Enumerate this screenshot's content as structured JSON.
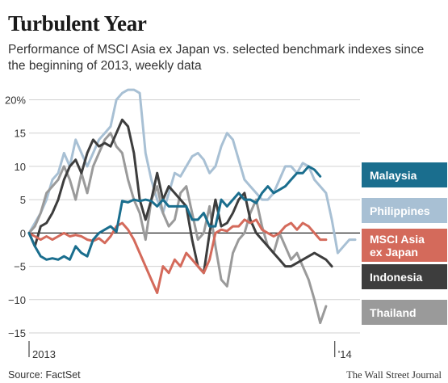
{
  "header": {
    "title": "Turbulent Year",
    "subtitle": "Performance of MSCI Asia ex Japan vs. selected benchmark indexes since the beginning of 2013, weekly data"
  },
  "footer": {
    "source": "Source: FactSet",
    "publisher": "The Wall Street Journal"
  },
  "legend": [
    {
      "label": "Malaysia",
      "color": "#1a6e8e"
    },
    {
      "label": "Philippines",
      "color": "#a8c0d4"
    },
    {
      "label": "MSCI Asia ex Japan",
      "color": "#d46a5b"
    },
    {
      "label": "Indonesia",
      "color": "#3d3d3d"
    },
    {
      "label": "Thailand",
      "color": "#9a9a9a"
    }
  ],
  "chart_data": {
    "type": "line",
    "ylim": [
      -15,
      22
    ],
    "yticks": [
      -15,
      -10,
      -5,
      0,
      5,
      10,
      15,
      20
    ],
    "ytick_labels": [
      "−15",
      "−10",
      "−5",
      "0",
      "5",
      "10",
      "15",
      "20%"
    ],
    "xtick_labels": [
      "2013",
      "'14"
    ],
    "grid": "horizontal",
    "x_start": "2013-01-04",
    "x_step_weeks": 1,
    "series": [
      {
        "name": "Philippines",
        "color": "#a8c0d4",
        "values": [
          0,
          1.5,
          3,
          5,
          8,
          9,
          12,
          10,
          14,
          12,
          10,
          12,
          14,
          15,
          16,
          20,
          21,
          21.5,
          21.5,
          21,
          12,
          8,
          5,
          3,
          6,
          9,
          8.5,
          10,
          11.5,
          12,
          11,
          9,
          10,
          13,
          15,
          14,
          11,
          8,
          7,
          6,
          5,
          5,
          6,
          8,
          10,
          10,
          9,
          10.5,
          10,
          8,
          7,
          6,
          2,
          -3,
          -2,
          -1,
          -1
        ]
      },
      {
        "name": "Thailand",
        "color": "#9a9a9a",
        "values": [
          0,
          1,
          3,
          6,
          7,
          8,
          10,
          8,
          5,
          9,
          6,
          10,
          12,
          14,
          15,
          13,
          12,
          8,
          5,
          3,
          -1,
          5,
          7,
          3,
          1,
          2,
          6,
          7,
          3,
          -1,
          0,
          4,
          -2,
          -7,
          -8,
          -3,
          -1,
          0,
          3,
          5,
          1,
          -2,
          -3,
          0,
          -2,
          -4,
          -3,
          -5,
          -7,
          -10,
          -13.5,
          -11
        ]
      },
      {
        "name": "Indonesia",
        "color": "#3d3d3d",
        "values": [
          0,
          -2,
          1,
          1.5,
          3,
          5,
          8,
          10,
          11,
          9,
          12,
          14,
          13,
          13.5,
          13,
          15,
          17,
          16,
          12,
          5,
          2,
          5,
          9,
          5,
          7,
          6,
          5,
          4,
          -1,
          -5,
          -6,
          0,
          5,
          1,
          1.5,
          3,
          5,
          6,
          2,
          0,
          -1,
          -2,
          -3,
          -4,
          -5,
          -5,
          -4.5,
          -4,
          -3.5,
          -3,
          -3.5,
          -4,
          -5
        ]
      },
      {
        "name": "MSCI Asia ex Japan",
        "color": "#d46a5b",
        "values": [
          0,
          -0.5,
          -1,
          -0.5,
          -1,
          -0.5,
          0,
          -0.5,
          -0.3,
          -0.5,
          -1,
          -1.2,
          -0.8,
          -1.5,
          -0.5,
          1,
          1.5,
          0.5,
          -1,
          -3,
          -5,
          -7,
          -9,
          -5,
          -6,
          -4,
          -5,
          -3,
          -4,
          -5,
          -6,
          -4,
          0,
          0.5,
          0.3,
          1,
          1,
          2,
          1.5,
          2,
          0.5,
          0,
          -0.5,
          0,
          1,
          1.5,
          0.5,
          1.5,
          1,
          0,
          -1,
          -1
        ]
      },
      {
        "name": "Malaysia",
        "color": "#1a6e8e",
        "values": [
          0,
          -2,
          -3.5,
          -4,
          -3.8,
          -4,
          -3.5,
          -4,
          -2,
          -3,
          -3.5,
          -1,
          0,
          0.5,
          1,
          0.2,
          4.8,
          4.6,
          5,
          4.8,
          5,
          4.8,
          4,
          5,
          4,
          4,
          4,
          4,
          2,
          2,
          3,
          1,
          1,
          5,
          4,
          5,
          6,
          5,
          5,
          4.5,
          6,
          7,
          6,
          6.5,
          7,
          8,
          9,
          9,
          10,
          9.5,
          8.5
        ]
      }
    ]
  }
}
